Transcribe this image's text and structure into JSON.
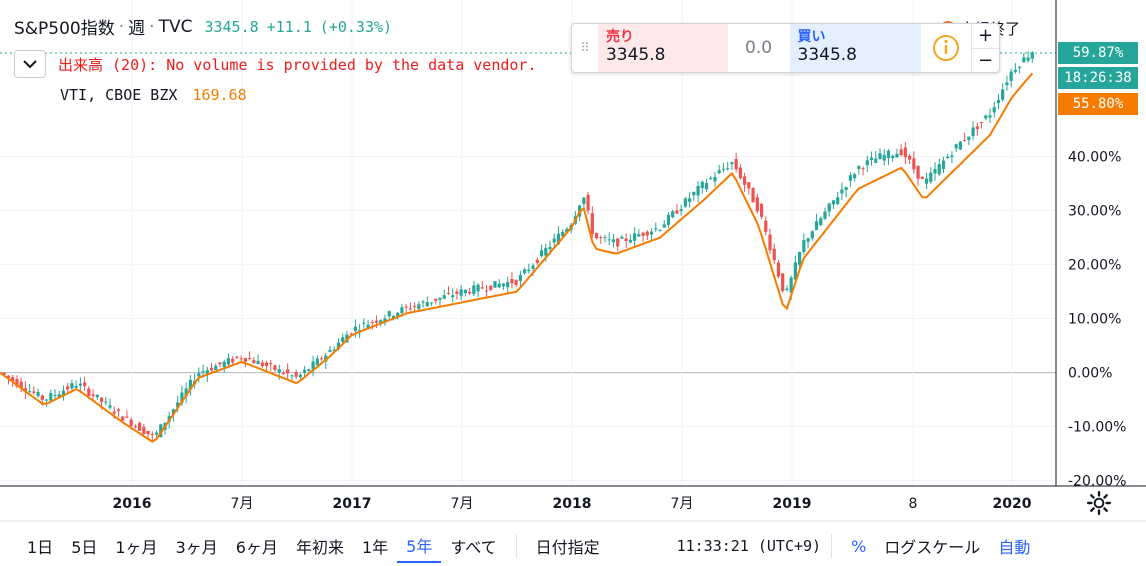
{
  "header": {
    "symbol": "S&P500指数",
    "interval": "週",
    "exchange": "TVC",
    "last": "3345.8",
    "change": "+11.1",
    "change_pct": "(+0.33%)",
    "market_status": "市場終了"
  },
  "volume_notice": "出来高 (20): No volume is provided by the data vendor.",
  "compare": {
    "symbol": "VTI, CBOE BZX",
    "value": "169.68"
  },
  "trade_panel": {
    "sell_label": "売り",
    "sell_price": "3345.8",
    "spread": "0.0",
    "buy_label": "買い",
    "buy_price": "3345.8",
    "zoom_in": "+",
    "zoom_out": "−"
  },
  "price_tags": {
    "main_pct": "59.87%",
    "countdown": "18:26:38",
    "compare_pct": "55.80%"
  },
  "bottom_bar": {
    "timeframes": [
      "1日",
      "5日",
      "1ヶ月",
      "3ヶ月",
      "6ヶ月",
      "年初来",
      "1年",
      "5年",
      "すべて"
    ],
    "active_timeframe": "5年",
    "date_range": "日付指定",
    "clock": "11:33:21 (UTC+9)",
    "percent_toggle": "%",
    "log_scale": "ログスケール",
    "auto": "自動"
  },
  "colors": {
    "up": "#26a69a",
    "down": "#ef5350",
    "compare": "#f57c00",
    "accent": "#2962ff"
  },
  "chart_data": {
    "type": "candlestick",
    "y_axis": {
      "unit": "%",
      "ticks": [
        "-20.00%",
        "-10.00%",
        "0.00%",
        "10.00%",
        "20.00%",
        "30.00%",
        "40.00%"
      ],
      "tick_values": [
        -20,
        -10,
        0,
        10,
        20,
        30,
        40
      ],
      "ylim": [
        -21,
        69
      ]
    },
    "x_axis": {
      "ticks": [
        "2016",
        "7月",
        "2017",
        "7月",
        "2018",
        "7月",
        "2019",
        "8",
        "2020"
      ],
      "tick_values": [
        2016.0,
        2016.5,
        2017.0,
        2017.5,
        2018.0,
        2018.5,
        2019.0,
        2019.55,
        2020.0
      ],
      "xlim": [
        2015.4,
        2020.2
      ]
    },
    "series": [
      {
        "name": "S&P500指数",
        "kind": "weekly candles, percent change",
        "x": [
          2015.4,
          2015.6,
          2015.75,
          2015.95,
          2016.1,
          2016.3,
          2016.5,
          2016.75,
          2016.9,
          2017.0,
          2017.25,
          2017.5,
          2017.75,
          2018.0,
          2018.05,
          2018.1,
          2018.2,
          2018.4,
          2018.6,
          2018.73,
          2018.85,
          2018.97,
          2019.05,
          2019.3,
          2019.4,
          2019.5,
          2019.6,
          2019.75,
          2019.9,
          2020.0,
          2020.1
        ],
        "y": [
          0,
          -5,
          -2,
          -8,
          -12,
          0,
          3,
          -1,
          4,
          8,
          12,
          15,
          17,
          28,
          33,
          25,
          24,
          27,
          35,
          39,
          30,
          14,
          24,
          38,
          40,
          41,
          35,
          42,
          48,
          56,
          59.87
        ]
      },
      {
        "name": "VTI, CBOE BZX",
        "kind": "line, percent change",
        "x": [
          2015.4,
          2015.6,
          2015.75,
          2015.95,
          2016.1,
          2016.3,
          2016.5,
          2016.75,
          2016.9,
          2017.0,
          2017.25,
          2017.5,
          2017.75,
          2018.0,
          2018.05,
          2018.1,
          2018.2,
          2018.4,
          2018.6,
          2018.73,
          2018.85,
          2018.97,
          2019.05,
          2019.3,
          2019.4,
          2019.5,
          2019.6,
          2019.75,
          2019.9,
          2020.0,
          2020.1
        ],
        "y": [
          0,
          -6,
          -3,
          -9,
          -13,
          -1,
          2,
          -2,
          3,
          7,
          11,
          13,
          15,
          27,
          31,
          23,
          22,
          25,
          32,
          37,
          27,
          11,
          21,
          34,
          36,
          38,
          32,
          38,
          44,
          51,
          55.8
        ]
      }
    ]
  }
}
